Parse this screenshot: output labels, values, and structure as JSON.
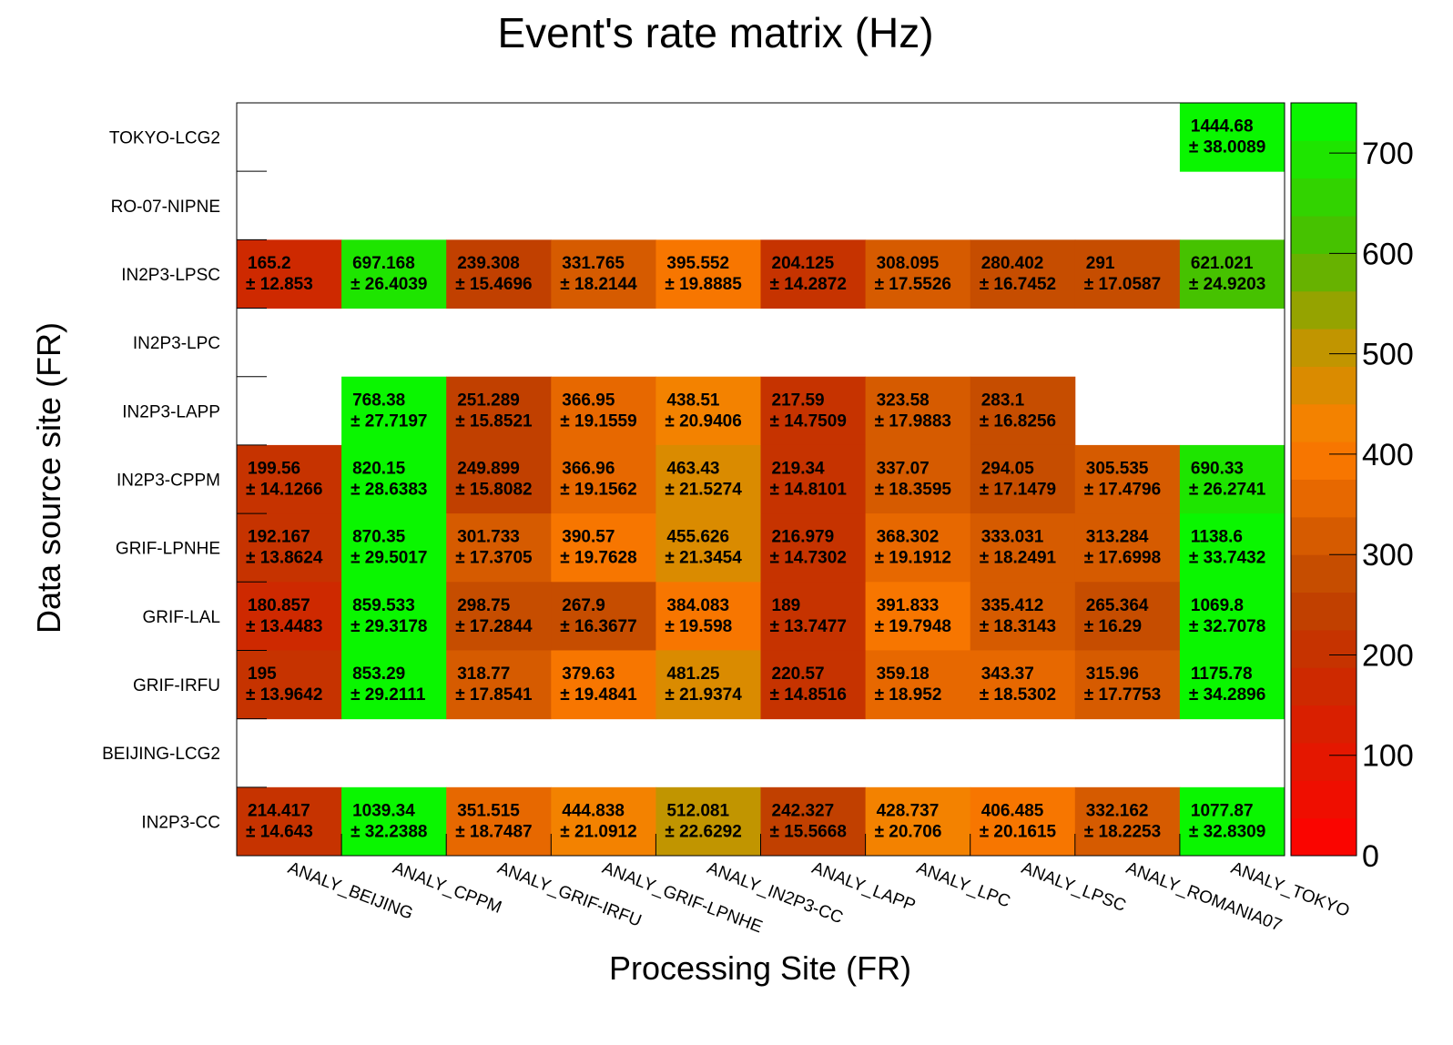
{
  "chart_data": {
    "type": "heatmap",
    "title": "Event's rate matrix (Hz)",
    "xlabel": "Processing Site (FR)",
    "ylabel": "Data source site (FR)",
    "x": [
      "ANALY_BEIJING",
      "ANALY_CPPM",
      "ANALY_GRIF-IRFU",
      "ANALY_GRIF-LPNHE",
      "ANALY_IN2P3-CC",
      "ANALY_LAPP",
      "ANALY_LPC",
      "ANALY_LPSC",
      "ANALY_ROMANIA07",
      "ANALY_TOKYO"
    ],
    "y": [
      "TOKYO-LCG2",
      "RO-07-NIPNE",
      "IN2P3-LPSC",
      "IN2P3-LPC",
      "IN2P3-LAPP",
      "IN2P3-CPPM",
      "GRIF-LPNHE",
      "GRIF-LAL",
      "GRIF-IRFU",
      "BEIJING-LCG2",
      "IN2P3-CC"
    ],
    "values": [
      [
        null,
        null,
        null,
        null,
        null,
        null,
        null,
        null,
        null,
        1444.68
      ],
      [
        null,
        null,
        null,
        null,
        null,
        null,
        null,
        null,
        null,
        null
      ],
      [
        165.2,
        697.168,
        239.308,
        331.765,
        395.552,
        204.125,
        308.095,
        280.402,
        291,
        621.021
      ],
      [
        null,
        null,
        null,
        null,
        null,
        null,
        null,
        null,
        null,
        null
      ],
      [
        null,
        768.38,
        251.289,
        366.95,
        438.51,
        217.59,
        323.58,
        283.1,
        null,
        null
      ],
      [
        199.56,
        820.15,
        249.899,
        366.96,
        463.43,
        219.34,
        337.07,
        294.05,
        305.535,
        690.33
      ],
      [
        192.167,
        870.35,
        301.733,
        390.57,
        455.626,
        216.979,
        368.302,
        333.031,
        313.284,
        1138.6
      ],
      [
        180.857,
        859.533,
        298.75,
        267.9,
        384.083,
        189,
        391.833,
        335.412,
        265.364,
        1069.8
      ],
      [
        195,
        853.29,
        318.77,
        379.63,
        481.25,
        220.57,
        359.18,
        343.37,
        315.96,
        1175.78
      ],
      [
        null,
        null,
        null,
        null,
        null,
        null,
        null,
        null,
        null,
        null
      ],
      [
        214.417,
        1039.34,
        351.515,
        444.838,
        512.081,
        242.327,
        428.737,
        406.485,
        332.162,
        1077.87
      ]
    ],
    "labels": [
      [
        null,
        null,
        null,
        null,
        null,
        null,
        null,
        null,
        null,
        "1444.68"
      ],
      [
        null,
        null,
        null,
        null,
        null,
        null,
        null,
        null,
        null,
        null
      ],
      [
        "165.2",
        "697.168",
        "239.308",
        "331.765",
        "395.552",
        "204.125",
        "308.095",
        "280.402",
        "291",
        "621.021"
      ],
      [
        null,
        null,
        null,
        null,
        null,
        null,
        null,
        null,
        null,
        null
      ],
      [
        null,
        "768.38",
        "251.289",
        "366.95",
        "438.51",
        "217.59",
        "323.58",
        "283.1",
        null,
        null
      ],
      [
        "199.56",
        "820.15",
        "249.899",
        "366.96",
        "463.43",
        "219.34",
        "337.07",
        "294.05",
        "305.535",
        "690.33"
      ],
      [
        "192.167",
        "870.35",
        "301.733",
        "390.57",
        "455.626",
        "216.979",
        "368.302",
        "333.031",
        "313.284",
        "1138.6"
      ],
      [
        "180.857",
        "859.533",
        "298.75",
        "267.9",
        "384.083",
        "189",
        "391.833",
        "335.412",
        "265.364",
        "1069.8"
      ],
      [
        "195",
        "853.29",
        "318.77",
        "379.63",
        "481.25",
        "220.57",
        "359.18",
        "343.37",
        "315.96",
        "1175.78"
      ],
      [
        null,
        null,
        null,
        null,
        null,
        null,
        null,
        null,
        null,
        null
      ],
      [
        "214.417",
        "1039.34",
        "351.515",
        "444.838",
        "512.081",
        "242.327",
        "428.737",
        "406.485",
        "332.162",
        "1077.87"
      ]
    ],
    "errors": [
      [
        null,
        null,
        null,
        null,
        null,
        null,
        null,
        null,
        null,
        "± 38.0089"
      ],
      [
        null,
        null,
        null,
        null,
        null,
        null,
        null,
        null,
        null,
        null
      ],
      [
        "± 12.853",
        "± 26.4039",
        "± 15.4696",
        "± 18.2144",
        "± 19.8885",
        "± 14.2872",
        "± 17.5526",
        "± 16.7452",
        "± 17.0587",
        "± 24.9203"
      ],
      [
        null,
        null,
        null,
        null,
        null,
        null,
        null,
        null,
        null,
        null
      ],
      [
        null,
        "± 27.7197",
        "± 15.8521",
        "± 19.1559",
        "± 20.9406",
        "± 14.7509",
        "± 17.9883",
        "± 16.8256",
        null,
        null
      ],
      [
        "± 14.1266",
        "± 28.6383",
        "± 15.8082",
        "± 19.1562",
        "± 21.5274",
        "± 14.8101",
        "± 18.3595",
        "± 17.1479",
        "± 17.4796",
        "± 26.2741"
      ],
      [
        "± 13.8624",
        "± 29.5017",
        "± 17.3705",
        "± 19.7628",
        "± 21.3454",
        "± 14.7302",
        "± 19.1912",
        "± 18.2491",
        "± 17.6998",
        "± 33.7432"
      ],
      [
        "± 13.4483",
        "± 29.3178",
        "± 17.2844",
        "± 16.3677",
        "± 19.598",
        "± 13.7477",
        "± 19.7948",
        "± 18.3143",
        "± 16.29",
        "± 32.7078"
      ],
      [
        "± 13.9642",
        "± 29.2111",
        "± 17.8541",
        "± 19.4841",
        "± 21.9374",
        "± 14.8516",
        "± 18.952",
        "± 18.5302",
        "± 17.7753",
        "± 34.2896"
      ],
      [
        null,
        null,
        null,
        null,
        null,
        null,
        null,
        null,
        null,
        null
      ],
      [
        "± 14.643",
        "± 32.2388",
        "± 18.7487",
        "± 21.0912",
        "± 22.6292",
        "± 15.5668",
        "± 20.706",
        "± 20.1615",
        "± 18.2253",
        "± 32.8309"
      ]
    ],
    "zlim": [
      0,
      750
    ],
    "z_ticks": [
      "0",
      "100",
      "200",
      "300",
      "400",
      "500",
      "600",
      "700"
    ],
    "colorscale": {
      "low": "#ff0000",
      "mid": "#ff8000",
      "high": "#00ff00",
      "levels": 20
    },
    "grid": false,
    "legend": "colorbar-right"
  }
}
